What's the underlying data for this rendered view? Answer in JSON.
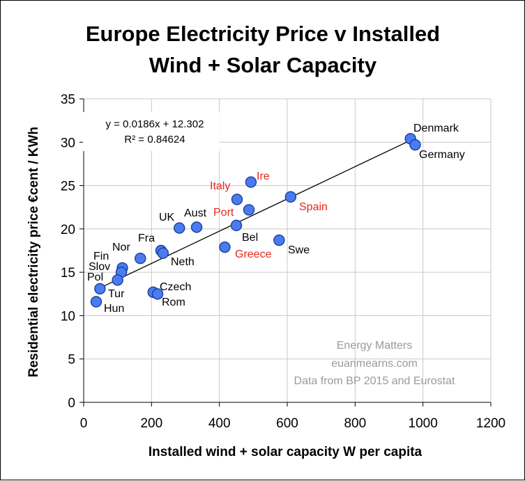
{
  "chart_data": {
    "type": "scatter",
    "title_lines": [
      "Europe Electricity Price v Installed",
      "Wind + Solar Capacity"
    ],
    "xlabel": "Installed wind + solar capacity W per capita",
    "ylabel": "Residential electricity price €cent / KWh",
    "xlim": [
      0,
      1200
    ],
    "ylim": [
      0,
      35
    ],
    "xticks": [
      0,
      200,
      400,
      600,
      800,
      1000,
      1200
    ],
    "yticks": [
      0,
      5,
      10,
      15,
      20,
      25,
      30,
      35
    ],
    "grid": true,
    "trendline": {
      "slope": 0.0186,
      "intercept": 12.302,
      "x_range": [
        50,
        965
      ]
    },
    "equation": "y = 0.0186x + 12.302",
    "r_squared": "R² = 0.84624",
    "credits": [
      "Energy Matters",
      "euanmearns.com",
      "Data from BP 2015 and Eurostat"
    ],
    "colors": {
      "marker_fill": "#4a7cf0",
      "marker_stroke": "#1a3d9c",
      "label_black": "#000000",
      "label_red": "#e8281e"
    },
    "points": [
      {
        "label": "Denmark",
        "x": 963,
        "y": 30.4,
        "color": "black"
      },
      {
        "label": "Germany",
        "x": 977,
        "y": 29.7,
        "color": "black"
      },
      {
        "label": "Ire",
        "x": 493,
        "y": 25.4,
        "color": "red"
      },
      {
        "label": "Italy",
        "x": 452,
        "y": 23.4,
        "color": "red"
      },
      {
        "label": "Spain",
        "x": 610,
        "y": 23.7,
        "color": "red"
      },
      {
        "label": "Port",
        "x": 487,
        "y": 22.2,
        "color": "red"
      },
      {
        "label": "Bel",
        "x": 450,
        "y": 20.4,
        "color": "black"
      },
      {
        "label": "UK",
        "x": 282,
        "y": 20.1,
        "color": "black"
      },
      {
        "label": "Aust",
        "x": 333,
        "y": 20.2,
        "color": "black"
      },
      {
        "label": "Greece",
        "x": 416,
        "y": 17.9,
        "color": "red"
      },
      {
        "label": "Swe",
        "x": 576,
        "y": 18.7,
        "color": "black"
      },
      {
        "label": "Fra",
        "x": 228,
        "y": 17.5,
        "color": "black"
      },
      {
        "label": "Neth",
        "x": 234,
        "y": 17.2,
        "color": "black"
      },
      {
        "label": "Nor",
        "x": 167,
        "y": 16.6,
        "color": "black"
      },
      {
        "label": "Fin",
        "x": 114,
        "y": 15.5,
        "color": "black"
      },
      {
        "label": "Slov",
        "x": 111,
        "y": 15.0,
        "color": "black"
      },
      {
        "label": "Pol",
        "x": 100,
        "y": 14.1,
        "color": "black"
      },
      {
        "label": "Tur",
        "x": 48,
        "y": 13.1,
        "color": "black"
      },
      {
        "label": "Czech",
        "x": 205,
        "y": 12.7,
        "color": "black"
      },
      {
        "label": "Rom",
        "x": 218,
        "y": 12.5,
        "color": "black"
      },
      {
        "label": "Hun",
        "x": 37,
        "y": 11.6,
        "color": "black"
      }
    ]
  }
}
